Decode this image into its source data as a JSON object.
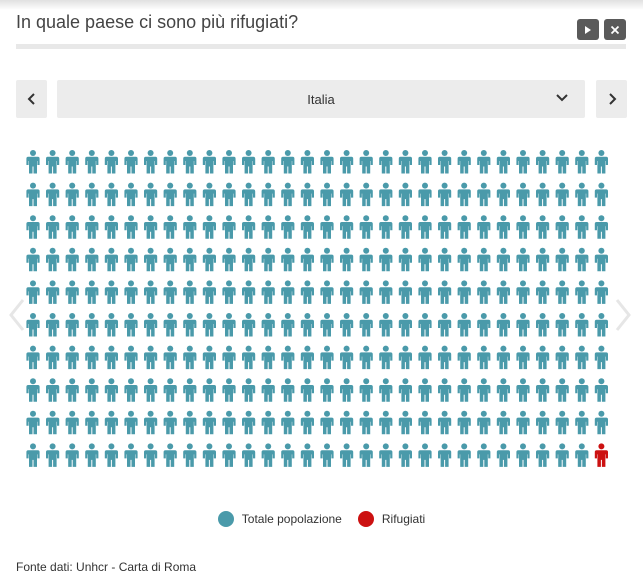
{
  "title": "In quale paese ci sono più rifugiati?",
  "controls": {
    "play_icon": "play-icon",
    "close_icon": "close-icon"
  },
  "selector": {
    "selected": "Italia",
    "prev_icon": "chevron-left-icon",
    "next_icon": "chevron-right-icon",
    "dropdown_icon": "chevron-down-icon"
  },
  "colors": {
    "population": "#4a9aaa",
    "refugees": "#cc1111"
  },
  "pictogram": {
    "rows": 10,
    "columns": 30,
    "refugee_icons": 1
  },
  "legend": [
    {
      "label": "Totale popolazione",
      "color": "#4a9aaa"
    },
    {
      "label": "Rifugiati",
      "color": "#cc1111"
    }
  ],
  "source": "Fonte dati: Unhcr - Carta di Roma"
}
